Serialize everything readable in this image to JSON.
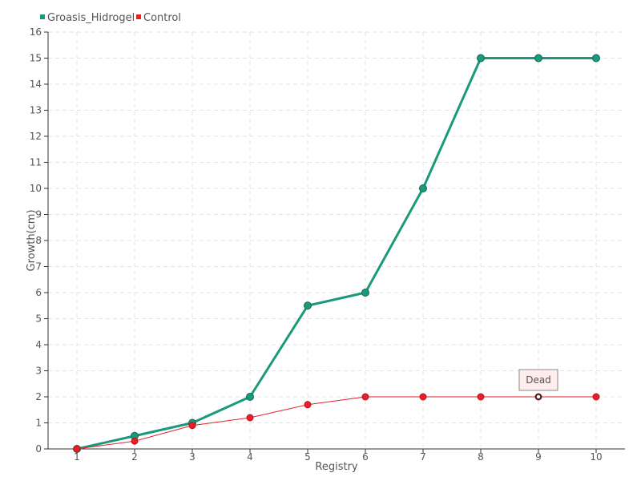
{
  "chart_data": {
    "type": "line",
    "title": "",
    "xlabel": "Registry",
    "ylabel": "Growth(cm)",
    "categories": [
      "1",
      "2",
      "3",
      "4",
      "5",
      "6",
      "7",
      "8",
      "9",
      "10"
    ],
    "ylim": [
      0,
      16
    ],
    "yticks": [
      "0",
      "1",
      "2",
      "3",
      "4",
      "5",
      "6",
      "7",
      "8",
      "9",
      "10",
      "11",
      "12",
      "13",
      "14",
      "15",
      "16"
    ],
    "grid": true,
    "legend_position": "top-left",
    "series": [
      {
        "name": "Groasis_Hidrogel",
        "color": "#1a9a7a",
        "values": [
          0,
          0.5,
          1,
          2,
          5.5,
          6,
          10,
          15,
          15,
          15
        ]
      },
      {
        "name": "Control",
        "color": "#e8202a",
        "values": [
          0,
          0.3,
          0.9,
          1.2,
          1.7,
          2,
          2,
          2,
          2,
          2
        ]
      }
    ],
    "annotations": [
      {
        "text": "Dead",
        "series": "Control",
        "category": "9",
        "value": 2
      }
    ]
  }
}
